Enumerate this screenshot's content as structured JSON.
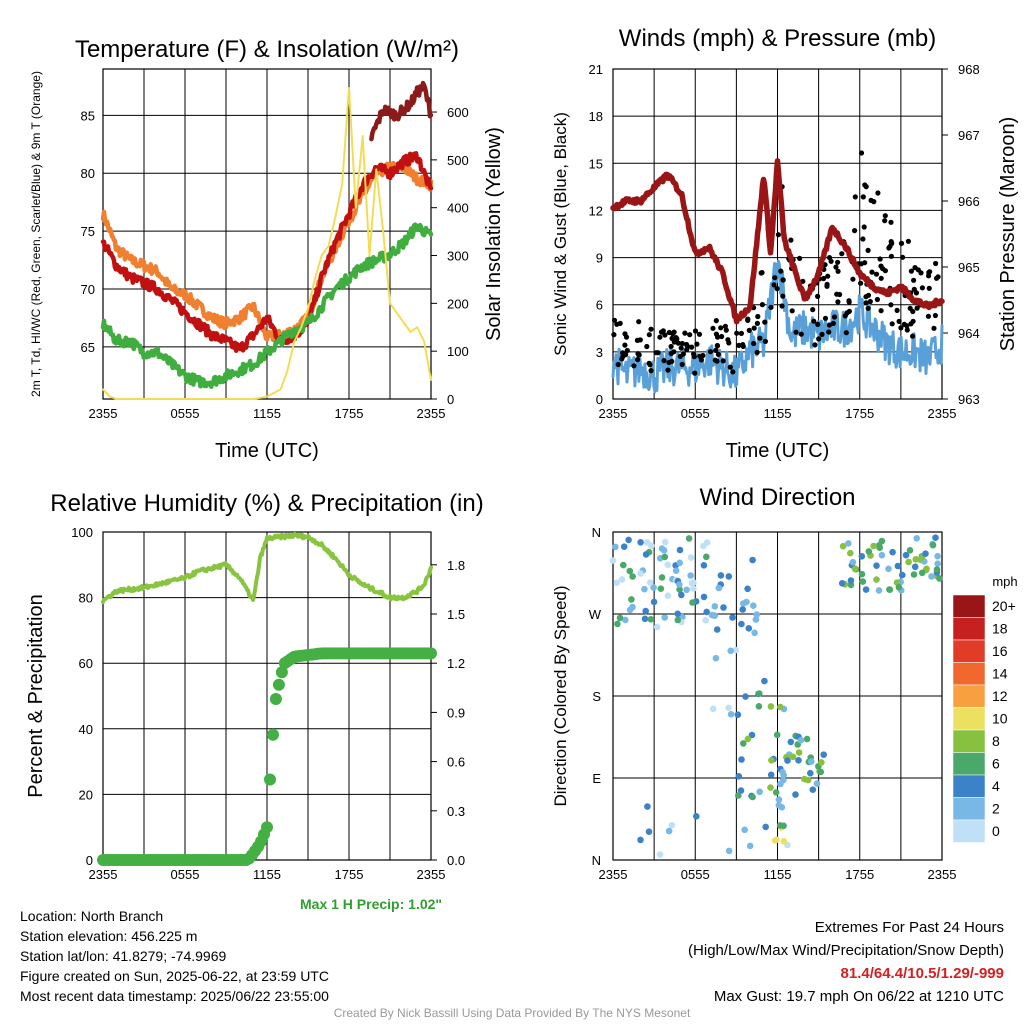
{
  "colors": {
    "temp_2m": "#c01010",
    "td": "#3fae3f",
    "hiwc": "#8b1a1a",
    "temp_9m": "#f08030",
    "insolation": "#f3dc55",
    "wind": "#5aa0d8",
    "gust": "#000000",
    "pressure": "#9a1515",
    "rh": "#88c440",
    "precip": "#44b044",
    "max_precip": "#2ea02e",
    "extremes": "#d42020",
    "credit": "#999999"
  },
  "chart_data": [
    {
      "type": "line",
      "title": "Temperature (F) & Insolation (W/m²)",
      "xlabel": "Time (UTC)",
      "ylabel": "2m T, Td, HI/WC (Red, Green, Scarlet/Blue) & 9m T (Orange)",
      "ylabel2": "Solar Insolation (Yellow)",
      "x_ticks": [
        "2355",
        "0555",
        "1155",
        "1755",
        "2355"
      ],
      "y_ticks": [
        65,
        70,
        75,
        80,
        85
      ],
      "y2_ticks": [
        0,
        100,
        200,
        300,
        400,
        500,
        600
      ],
      "xlim": [
        0,
        24
      ],
      "ylim": [
        60.5,
        89
      ],
      "y2lim": [
        0,
        690
      ],
      "series": [
        {
          "key": "temp_9m",
          "axis": "left",
          "x": [
            0,
            1,
            2,
            3,
            4,
            5,
            6,
            7,
            8,
            9,
            10,
            11,
            12,
            13,
            14,
            15,
            16,
            17,
            18,
            19,
            20,
            21,
            22,
            23,
            24
          ],
          "values": [
            76.5,
            73.5,
            72.5,
            72,
            71.5,
            70,
            69.5,
            68.5,
            67.5,
            67,
            67.5,
            68.5,
            65.8,
            66,
            66.5,
            67.5,
            71,
            73.5,
            76,
            78,
            80,
            80.5,
            80.5,
            79.5,
            79
          ]
        },
        {
          "key": "temp_2m",
          "axis": "left",
          "x": [
            0,
            1,
            2,
            3,
            4,
            5,
            6,
            7,
            8,
            9,
            10,
            11,
            12,
            13,
            14,
            15,
            16,
            17,
            18,
            19,
            20,
            21,
            22,
            23,
            24
          ],
          "values": [
            74,
            72,
            71,
            70.5,
            70,
            69,
            68,
            67,
            66,
            65.5,
            64.8,
            66,
            67.5,
            65.5,
            66,
            67,
            71,
            74,
            76.5,
            79,
            80.5,
            80,
            81,
            81.5,
            78.5
          ]
        },
        {
          "key": "td",
          "axis": "left",
          "x": [
            0,
            1,
            2,
            3,
            4,
            5,
            6,
            7,
            8,
            9,
            10,
            11,
            12,
            13,
            14,
            15,
            16,
            17,
            18,
            19,
            20,
            21,
            22,
            23,
            24
          ],
          "values": [
            67,
            65.5,
            65.5,
            64.5,
            64.5,
            63.5,
            62.5,
            62,
            62,
            62.5,
            63,
            63.5,
            64.5,
            65.5,
            66.5,
            67,
            68.5,
            70,
            71,
            72,
            72.5,
            73,
            74,
            75.5,
            74.5
          ]
        },
        {
          "key": "hiwc",
          "axis": "left",
          "x": [
            19.6,
            20.5,
            21.5,
            22.5,
            23,
            23.5,
            24
          ],
          "values": [
            83,
            85.5,
            85,
            86,
            87,
            87.5,
            85
          ]
        },
        {
          "key": "insolation",
          "axis": "right",
          "x": [
            0,
            0.5,
            1,
            3,
            5,
            7,
            8,
            9,
            10,
            11,
            12,
            13,
            13.5,
            14,
            14.5,
            15,
            15.5,
            16,
            16.5,
            17,
            17.5,
            18,
            18.5,
            19,
            19.5,
            20,
            20.5,
            21,
            21.5,
            22,
            22.5,
            23,
            23.5,
            24
          ],
          "values": [
            20,
            5,
            0,
            0,
            0,
            0,
            0,
            0,
            0,
            0,
            5,
            20,
            60,
            120,
            150,
            190,
            250,
            300,
            320,
            380,
            450,
            650,
            400,
            550,
            300,
            480,
            350,
            200,
            180,
            160,
            140,
            150,
            120,
            40
          ]
        }
      ]
    },
    {
      "type": "line",
      "title": "Winds (mph) & Pressure (mb)",
      "xlabel": "Time (UTC)",
      "ylabel": "Sonic Wind & Gust (Blue, Black)",
      "ylabel2": "Station Pressure (Maroon)",
      "x_ticks": [
        "2355",
        "0555",
        "1155",
        "1755",
        "2355"
      ],
      "y_ticks": [
        0,
        3,
        6,
        9,
        12,
        15,
        18,
        21
      ],
      "y2_ticks": [
        963,
        964,
        965,
        966,
        967,
        968
      ],
      "xlim": [
        0,
        24
      ],
      "ylim": [
        0,
        21
      ],
      "y2lim": [
        963,
        968
      ],
      "series": [
        {
          "key": "wind",
          "axis": "left",
          "x": [
            0,
            1,
            2,
            3,
            4,
            5,
            6,
            7,
            8,
            9,
            10,
            11,
            12,
            13,
            14,
            15,
            16,
            17,
            18,
            19,
            20,
            21,
            22,
            23,
            24
          ],
          "values": [
            2.5,
            1.5,
            2,
            1.5,
            2,
            2,
            2,
            2.5,
            2,
            1.5,
            3,
            3.5,
            9,
            4,
            4.5,
            4,
            4.5,
            4.5,
            5.5,
            4.5,
            3.5,
            3,
            3,
            2.5,
            3.5
          ]
        },
        {
          "key": "gust",
          "axis": "left",
          "x": [
            0,
            1,
            2,
            3,
            4,
            5,
            6,
            7,
            8,
            9,
            10,
            11,
            12,
            13,
            14,
            15,
            16,
            17,
            18,
            19,
            20,
            21,
            22,
            23,
            24
          ],
          "values": [
            4,
            3,
            3.5,
            3,
            3,
            3,
            3,
            3.5,
            3.5,
            3,
            4.5,
            6,
            11,
            7,
            6.5,
            6,
            7,
            7,
            11,
            10,
            9,
            7,
            7,
            6,
            6
          ]
        },
        {
          "key": "pressure",
          "axis": "right",
          "x": [
            0,
            1,
            2,
            3,
            4,
            5,
            6,
            7,
            8,
            9,
            10,
            11,
            11.5,
            12,
            12.5,
            13,
            14,
            15,
            16,
            17,
            18,
            19,
            20,
            21,
            22,
            23,
            24
          ],
          "values": [
            965.9,
            966,
            966,
            966.2,
            966.4,
            966.1,
            965.2,
            965.3,
            964.9,
            964.2,
            964.4,
            966.4,
            965.2,
            966.6,
            965.4,
            965.1,
            964.5,
            964.9,
            965.6,
            965.3,
            964.9,
            964.7,
            964.6,
            964.7,
            964.5,
            964.4,
            964.5
          ]
        }
      ]
    },
    {
      "type": "line",
      "title": "Relative Humidity (%) & Precipitation (in)",
      "xlabel": "",
      "ylabel": "Percent & Precipitation",
      "x_ticks": [
        "2355",
        "0555",
        "1155",
        "1755",
        "2355"
      ],
      "y_ticks": [
        0,
        20,
        40,
        60,
        80,
        100
      ],
      "y2_ticks": [
        "0.0",
        "0.3",
        "0.6",
        "0.9",
        "1.2",
        "1.5",
        "1.8"
      ],
      "xlim": [
        0,
        24
      ],
      "ylim": [
        0,
        100
      ],
      "y2lim": [
        0,
        2
      ],
      "series": [
        {
          "key": "rh",
          "axis": "left",
          "x": [
            0,
            1,
            2,
            3,
            4,
            5,
            6,
            7,
            8,
            9,
            10,
            11,
            11.5,
            12,
            13,
            14,
            15,
            16,
            17,
            18,
            19,
            20,
            21,
            22,
            23,
            23.5,
            24
          ],
          "values": [
            79,
            82,
            82.5,
            83,
            84,
            85,
            86,
            88,
            89,
            90,
            86,
            79,
            92,
            98,
            98.5,
            99,
            98.5,
            96,
            92,
            87,
            84,
            82,
            80,
            80,
            82,
            84,
            89
          ]
        },
        {
          "key": "precip",
          "axis": "left",
          "x": [
            0,
            2,
            4,
            6,
            8,
            10,
            10.6,
            11,
            11.5,
            12,
            12.3,
            12.6,
            13,
            13.3,
            14,
            15,
            16,
            17,
            18,
            19,
            20,
            21,
            22,
            23,
            24
          ],
          "values": [
            0,
            0,
            0,
            0,
            0,
            0,
            0,
            2,
            5,
            10,
            30,
            48,
            56,
            60,
            62,
            62.5,
            63,
            63,
            63,
            63,
            63,
            63,
            63,
            63,
            63
          ]
        }
      ]
    },
    {
      "type": "scatter",
      "title": "Wind Direction",
      "ylabel": "Direction (Colored By Speed)",
      "x_ticks": [
        "2355",
        "0555",
        "1155",
        "1755",
        "2355"
      ],
      "y_ticks": [
        "N",
        "W",
        "S",
        "E",
        "N"
      ],
      "xlim": [
        0,
        24
      ],
      "ylim": [
        0,
        360
      ],
      "legend": {
        "title": "mph",
        "labels": [
          "20+",
          "18",
          "16",
          "14",
          "12",
          "10",
          "8",
          "6",
          "4",
          "2",
          "0"
        ],
        "colors": [
          "#9a1515",
          "#c62020",
          "#e03c28",
          "#f0682e",
          "#f8a040",
          "#ece060",
          "#88c040",
          "#4aa86a",
          "#3c82c8",
          "#78b8e6",
          "#bfe0f6"
        ]
      }
    }
  ],
  "max_precip": "Max 1 H Precip: 1.02\"",
  "info": {
    "location": "Location: North Branch",
    "elevation": "Station elevation: 456.225 m",
    "latlon": "Station lat/lon: 41.8279; -74.9969",
    "created": "Figure created on Sun, 2025-06-22, at 23:59 UTC",
    "recent": "Most recent data timestamp: 2025/06/22 23:55:00"
  },
  "extremes": {
    "heading": "Extremes For Past 24 Hours",
    "subheading": "(High/Low/Max Wind/Precipitation/Snow Depth)",
    "values": "81.4/64.4/10.5/1.29/-999",
    "gust": "Max Gust: 19.7 mph On 06/22 at 1210 UTC"
  },
  "credit": "Created By Nick Bassill Using Data Provided By The NYS Mesonet"
}
